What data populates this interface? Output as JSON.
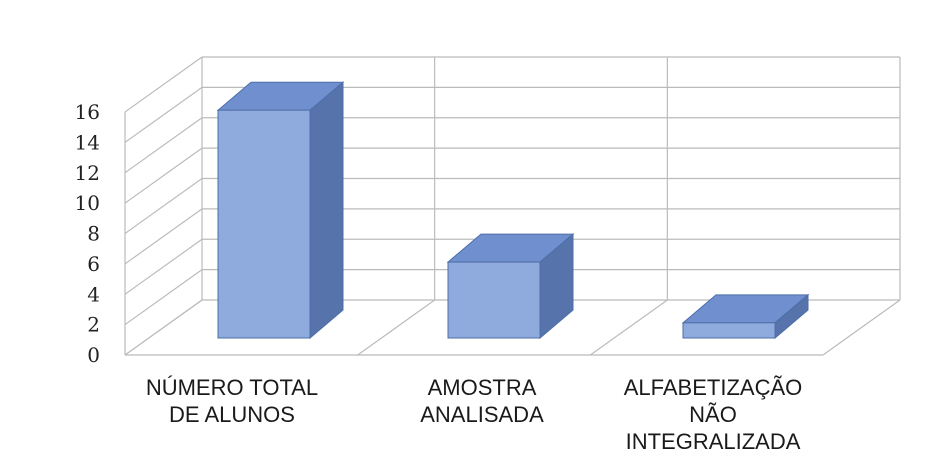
{
  "chart_data": {
    "type": "bar",
    "style": "3d-column",
    "categories": [
      [
        "NÚMERO TOTAL",
        "DE ALUNOS"
      ],
      [
        "AMOSTRA",
        "ANALISADA"
      ],
      [
        "ALFABETIZAÇÃO",
        "NÃO",
        "INTEGRALIZADA"
      ]
    ],
    "values": [
      15,
      5,
      1
    ],
    "ylim": [
      0,
      16
    ],
    "yticks": [
      0,
      2,
      4,
      6,
      8,
      10,
      12,
      14,
      16
    ],
    "grid": true,
    "title": "",
    "xlabel": "",
    "ylabel": "",
    "colors": {
      "bar_front": "#8FAADC",
      "bar_top": "#6F8FCE",
      "bar_side": "#5673AC",
      "bar_edge": "#4E6FA8",
      "grid": "#BBBBBB"
    }
  }
}
